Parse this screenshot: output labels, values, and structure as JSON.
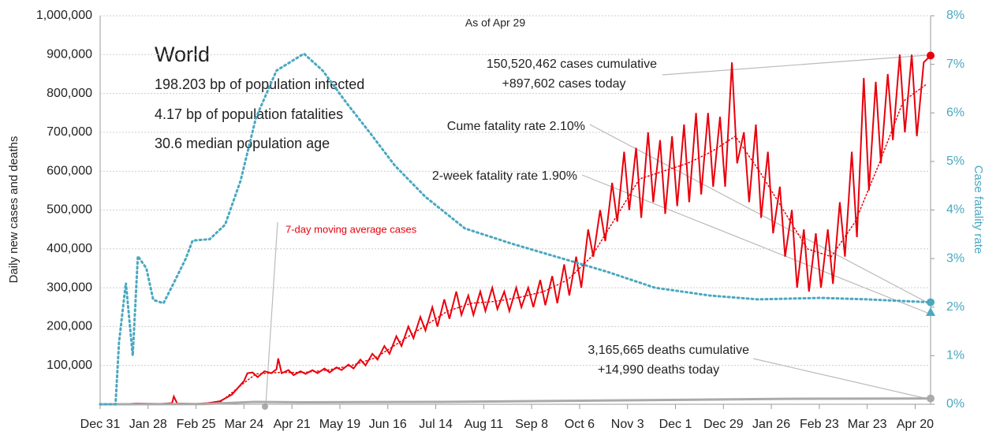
{
  "chart_data": {
    "type": "line",
    "title": "World",
    "subtitle": "As of Apr 29",
    "stats": [
      "198.203 bp of population infected",
      "4.17 bp of population fatalities",
      "30.6 median population age"
    ],
    "ylabel": "Daily new cases and deaths",
    "y2label": "Case fatality rate",
    "annotations": [
      "150,520,462 cases cumulative",
      "+897,602 cases today",
      "Cume fatality rate 2.10%",
      "2-week fatality rate 1.90%",
      "3,165,665 deaths cumulative",
      "+14,990 deaths today",
      "7-day moving average cases"
    ],
    "xlim": [
      0,
      485
    ],
    "xticks": [
      {
        "value": 0,
        "label": "Dec 31"
      },
      {
        "value": 28,
        "label": "Jan 28"
      },
      {
        "value": 56,
        "label": "Feb 25"
      },
      {
        "value": 84,
        "label": "Mar 24"
      },
      {
        "value": 112,
        "label": "Apr 21"
      },
      {
        "value": 140,
        "label": "May 19"
      },
      {
        "value": 168,
        "label": "Jun 16"
      },
      {
        "value": 196,
        "label": "Jul 14"
      },
      {
        "value": 224,
        "label": "Aug 11"
      },
      {
        "value": 252,
        "label": "Sep 8"
      },
      {
        "value": 280,
        "label": "Oct 6"
      },
      {
        "value": 308,
        "label": "Nov 3"
      },
      {
        "value": 336,
        "label": "Dec 1"
      },
      {
        "value": 364,
        "label": "Dec 29"
      },
      {
        "value": 392,
        "label": "Jan 26"
      },
      {
        "value": 420,
        "label": "Feb 23"
      },
      {
        "value": 448,
        "label": "Mar 23"
      },
      {
        "value": 476,
        "label": "Apr 20"
      }
    ],
    "ylim": [
      0,
      1000000
    ],
    "yticks": [
      {
        "value": 100000,
        "label": "100,000"
      },
      {
        "value": 200000,
        "label": "200,000"
      },
      {
        "value": 300000,
        "label": "300,000"
      },
      {
        "value": 400000,
        "label": "400,000"
      },
      {
        "value": 500000,
        "label": "500,000"
      },
      {
        "value": 600000,
        "label": "600,000"
      },
      {
        "value": 700000,
        "label": "700,000"
      },
      {
        "value": 800000,
        "label": "800,000"
      },
      {
        "value": 900000,
        "label": "900,000"
      },
      {
        "value": 1000000,
        "label": "1,000,000"
      }
    ],
    "y2lim": [
      0,
      8
    ],
    "y2ticks": [
      {
        "value": 0,
        "label": "0%"
      },
      {
        "value": 1,
        "label": "1%"
      },
      {
        "value": 2,
        "label": "2%"
      },
      {
        "value": 3,
        "label": "3%"
      },
      {
        "value": 4,
        "label": "4%"
      },
      {
        "value": 5,
        "label": "5%"
      },
      {
        "value": 6,
        "label": "6%"
      },
      {
        "value": 7,
        "label": "7%"
      },
      {
        "value": 8,
        "label": "8%"
      }
    ],
    "grid": true,
    "two_week_fatality_rate": 1.9,
    "series": [
      {
        "color": "#e8000b",
        "style": "solid",
        "endpoint": true,
        "x": [
          0,
          14,
          21,
          35,
          42,
          43,
          45,
          56,
          63,
          70,
          77,
          80,
          84,
          86,
          89,
          92,
          96,
          100,
          103,
          104,
          106,
          110,
          113,
          117,
          120,
          124,
          127,
          131,
          134,
          138,
          141,
          145,
          148,
          152,
          155,
          159,
          162,
          166,
          169,
          173,
          176,
          180,
          183,
          187,
          190,
          194,
          197,
          201,
          204,
          208,
          211,
          215,
          218,
          222,
          225,
          229,
          232,
          236,
          239,
          243,
          246,
          250,
          253,
          257,
          260,
          264,
          267,
          271,
          274,
          278,
          281,
          285,
          288,
          292,
          295,
          299,
          302,
          306,
          309,
          313,
          316,
          320,
          323,
          327,
          330,
          334,
          337,
          341,
          344,
          348,
          351,
          355,
          358,
          362,
          365,
          369,
          372,
          376,
          379,
          383,
          386,
          390,
          393,
          397,
          400,
          404,
          407,
          411,
          414,
          418,
          421,
          425,
          428,
          432,
          435,
          439,
          442,
          446,
          449,
          453,
          456,
          460,
          463,
          467,
          470,
          474,
          477,
          481,
          485
        ],
        "values": [
          0,
          0,
          2000,
          1000,
          3000,
          20000,
          2000,
          1000,
          3000,
          8000,
          25000,
          40000,
          60000,
          80000,
          82000,
          70000,
          85000,
          80000,
          90000,
          118000,
          80000,
          88000,
          75000,
          85000,
          78000,
          88000,
          80000,
          92000,
          82000,
          95000,
          88000,
          102000,
          92000,
          115000,
          100000,
          130000,
          115000,
          150000,
          130000,
          175000,
          150000,
          200000,
          170000,
          225000,
          190000,
          250000,
          200000,
          270000,
          220000,
          290000,
          230000,
          280000,
          230000,
          290000,
          240000,
          300000,
          245000,
          290000,
          240000,
          300000,
          250000,
          300000,
          250000,
          320000,
          255000,
          330000,
          260000,
          360000,
          280000,
          380000,
          300000,
          450000,
          380000,
          500000,
          420000,
          570000,
          470000,
          650000,
          500000,
          660000,
          480000,
          700000,
          520000,
          680000,
          490000,
          690000,
          510000,
          720000,
          520000,
          750000,
          540000,
          750000,
          560000,
          740000,
          560000,
          880000,
          620000,
          700000,
          520000,
          720000,
          480000,
          650000,
          440000,
          560000,
          380000,
          500000,
          300000,
          450000,
          290000,
          440000,
          300000,
          450000,
          310000,
          520000,
          380000,
          650000,
          430000,
          840000,
          550000,
          830000,
          620000,
          850000,
          680000,
          900000,
          700000,
          900000,
          690000,
          880000,
          897602
        ]
      },
      {
        "name": "7-day moving average cases",
        "color": "#e8000b",
        "style": "dotted",
        "x": [
          0,
          56,
          70,
          77,
          84,
          91,
          105,
          119,
          133,
          147,
          161,
          175,
          189,
          203,
          217,
          231,
          245,
          259,
          273,
          287,
          301,
          315,
          329,
          343,
          357,
          371,
          385,
          399,
          413,
          427,
          441,
          455,
          469,
          483
        ],
        "values": [
          0,
          0,
          5000,
          30000,
          55000,
          78000,
          82000,
          82000,
          88000,
          100000,
          120000,
          160000,
          200000,
          240000,
          260000,
          265000,
          275000,
          290000,
          320000,
          380000,
          480000,
          580000,
          600000,
          620000,
          650000,
          690000,
          600000,
          500000,
          400000,
          380000,
          470000,
          620000,
          780000,
          825000
        ]
      },
      {
        "color": "#aaaaaa",
        "style": "solid",
        "endpoint": true,
        "x": [
          0,
          60,
          90,
          120,
          200,
          300,
          400,
          485
        ],
        "values": [
          0,
          500,
          6000,
          5000,
          6000,
          10000,
          14000,
          14990
        ]
      },
      {
        "color": "#4aa8c0",
        "style": "dotted",
        "axis": "y2",
        "endpoint": true,
        "x": [
          0,
          9,
          11,
          15,
          19,
          22,
          27,
          31,
          37,
          43,
          50,
          54,
          64,
          73,
          82,
          91,
          103,
          119,
          130,
          144,
          158,
          172,
          190,
          213,
          241,
          273,
          296,
          324,
          356,
          384,
          421,
          448,
          485
        ],
        "values": [
          0,
          0,
          1.27,
          2.5,
          1.0,
          3.05,
          2.8,
          2.15,
          2.08,
          2.5,
          3.0,
          3.37,
          3.4,
          3.7,
          4.6,
          5.9,
          6.87,
          7.22,
          6.87,
          6.2,
          5.57,
          4.92,
          4.27,
          3.62,
          3.3,
          2.97,
          2.73,
          2.4,
          2.24,
          2.16,
          2.19,
          2.16,
          2.1
        ]
      }
    ]
  }
}
